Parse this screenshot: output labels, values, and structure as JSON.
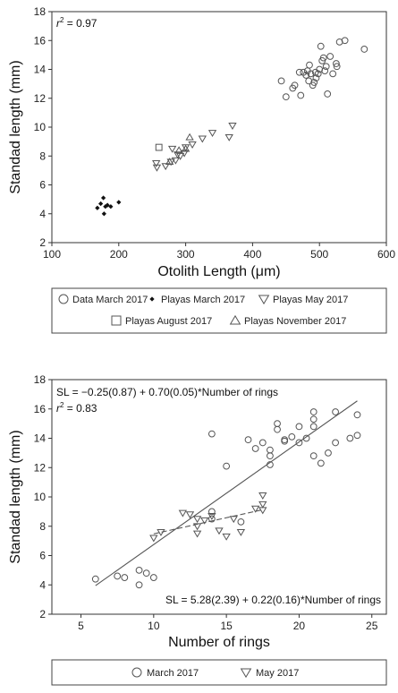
{
  "chart_data": [
    {
      "type": "scatter",
      "xlabel": "Otolith Length (μm)",
      "ylabel": "Standad length (mm)",
      "xlim": [
        100,
        600
      ],
      "ylim": [
        2,
        18
      ],
      "xticks": [
        "100",
        "200",
        "300",
        "400",
        "500",
        "600"
      ],
      "yticks": [
        "2",
        "4",
        "6",
        "8",
        "10",
        "12",
        "14",
        "16",
        "18"
      ],
      "annotation_r2_label": "r",
      "annotation_r2_sup": "2",
      "annotation_r2_value": " = 0.97",
      "legend": [
        {
          "name": "Data March 2017",
          "marker": "circle"
        },
        {
          "name": "Playas March 2017",
          "marker": "diamond"
        },
        {
          "name": "Playas May 2017",
          "marker": "triangle-down"
        },
        {
          "name": "Playas August 2017",
          "marker": "square"
        },
        {
          "name": "Playas November 2017",
          "marker": "triangle-up"
        }
      ],
      "series": [
        {
          "name": "Data March 2017",
          "marker": "circle",
          "points": [
            [
              443,
              13.2
            ],
            [
              450,
              12.1
            ],
            [
              460,
              12.7
            ],
            [
              463,
              12.9
            ],
            [
              470,
              13.8
            ],
            [
              472,
              12.2
            ],
            [
              476,
              13.8
            ],
            [
              480,
              13.6
            ],
            [
              482,
              13.9
            ],
            [
              484,
              13.2
            ],
            [
              485,
              14.3
            ],
            [
              487,
              13.7
            ],
            [
              490,
              12.9
            ],
            [
              492,
              13.1
            ],
            [
              494,
              13.8
            ],
            [
              495,
              13.4
            ],
            [
              498,
              13.7
            ],
            [
              500,
              14.0
            ],
            [
              502,
              15.6
            ],
            [
              504,
              14.6
            ],
            [
              506,
              14.8
            ],
            [
              508,
              13.9
            ],
            [
              510,
              14.2
            ],
            [
              512,
              12.3
            ],
            [
              516,
              14.9
            ],
            [
              520,
              13.7
            ],
            [
              525,
              14.4
            ],
            [
              526,
              14.2
            ],
            [
              530,
              15.9
            ],
            [
              538,
              16.0
            ],
            [
              567,
              15.4
            ]
          ]
        },
        {
          "name": "Playas March 2017",
          "marker": "diamond",
          "points": [
            [
              168,
              4.4
            ],
            [
              173,
              4.7
            ],
            [
              177,
              5.1
            ],
            [
              178,
              4.0
            ],
            [
              180,
              4.5
            ],
            [
              183,
              4.6
            ],
            [
              188,
              4.5
            ],
            [
              200,
              4.8
            ]
          ]
        },
        {
          "name": "Playas May 2017",
          "marker": "triangle-down",
          "points": [
            [
              256,
              7.5
            ],
            [
              257,
              7.2
            ],
            [
              270,
              7.3
            ],
            [
              278,
              7.6
            ],
            [
              280,
              8.5
            ],
            [
              285,
              7.7
            ],
            [
              288,
              8.1
            ],
            [
              292,
              8.0
            ],
            [
              298,
              8.2
            ],
            [
              300,
              8.6
            ],
            [
              310,
              8.8
            ],
            [
              325,
              9.2
            ],
            [
              340,
              9.6
            ],
            [
              365,
              9.3
            ],
            [
              370,
              10.1
            ]
          ]
        },
        {
          "name": "Playas August 2017",
          "marker": "square",
          "points": [
            [
              260,
              8.6
            ]
          ]
        },
        {
          "name": "Playas November 2017",
          "marker": "triangle-up",
          "points": [
            [
              276,
              7.6
            ],
            [
              290,
              8.4
            ],
            [
              300,
              8.5
            ],
            [
              306,
              9.3
            ]
          ]
        }
      ]
    },
    {
      "type": "scatter",
      "xlabel": "Number of rings",
      "ylabel": "Standad length (mm)",
      "xlim": [
        3,
        26
      ],
      "ylim": [
        2,
        18
      ],
      "xticks": [
        "5",
        "10",
        "15",
        "20",
        "25"
      ],
      "yticks": [
        "2",
        "4",
        "6",
        "8",
        "10",
        "12",
        "14",
        "16",
        "18"
      ],
      "annotation_eq1": "SL = −0.25(0.87) + 0.70(0.05)*Number of rings",
      "annotation_r2_label": "r",
      "annotation_r2_sup": "2",
      "annotation_r2_value": " = 0.83",
      "annotation_eq2": "SL = 5.28(2.39) + 0.22(0.16)*Number of rings",
      "legend": [
        {
          "name": "March 2017",
          "marker": "circle"
        },
        {
          "name": "May 2017",
          "marker": "triangle-down"
        }
      ],
      "lines": [
        {
          "style": "solid",
          "intercept": -0.25,
          "slope": 0.7,
          "x_range": [
            6,
            24
          ]
        },
        {
          "style": "dashed",
          "intercept": 5.28,
          "slope": 0.22,
          "x_range": [
            10,
            17.5
          ]
        }
      ],
      "series": [
        {
          "name": "March 2017",
          "marker": "circle",
          "points": [
            [
              6,
              4.4
            ],
            [
              7.5,
              4.6
            ],
            [
              8,
              4.5
            ],
            [
              9,
              4.0
            ],
            [
              9,
              5.0
            ],
            [
              9.5,
              4.8
            ],
            [
              10,
              4.5
            ],
            [
              14,
              9.0
            ],
            [
              14,
              8.5
            ],
            [
              14,
              14.3
            ],
            [
              15,
              12.1
            ],
            [
              16,
              8.3
            ],
            [
              16.5,
              13.9
            ],
            [
              17,
              13.3
            ],
            [
              17.5,
              13.7
            ],
            [
              18,
              12.2
            ],
            [
              18,
              12.8
            ],
            [
              18,
              13.2
            ],
            [
              18.5,
              14.6
            ],
            [
              18.5,
              15.0
            ],
            [
              19,
              13.9
            ],
            [
              19,
              13.8
            ],
            [
              19.5,
              14.1
            ],
            [
              20,
              13.7
            ],
            [
              20,
              14.8
            ],
            [
              20.5,
              14.0
            ],
            [
              21,
              14.8
            ],
            [
              21,
              15.8
            ],
            [
              21,
              12.8
            ],
            [
              21,
              15.3
            ],
            [
              21.5,
              12.3
            ],
            [
              22,
              13.0
            ],
            [
              22.5,
              13.7
            ],
            [
              22.5,
              15.8
            ],
            [
              23.5,
              14.0
            ],
            [
              24,
              15.6
            ],
            [
              24,
              14.2
            ]
          ]
        },
        {
          "name": "May 2017",
          "marker": "triangle-down",
          "points": [
            [
              10,
              7.2
            ],
            [
              10.5,
              7.6
            ],
            [
              12,
              8.9
            ],
            [
              12.5,
              8.8
            ],
            [
              13,
              8.5
            ],
            [
              13,
              8.0
            ],
            [
              13,
              7.5
            ],
            [
              13.5,
              8.4
            ],
            [
              14,
              8.7
            ],
            [
              14.5,
              7.7
            ],
            [
              15,
              7.3
            ],
            [
              15.5,
              8.5
            ],
            [
              16,
              7.6
            ],
            [
              17,
              9.2
            ],
            [
              17.5,
              9.1
            ],
            [
              17.5,
              9.5
            ],
            [
              17.5,
              10.1
            ]
          ]
        }
      ]
    }
  ]
}
